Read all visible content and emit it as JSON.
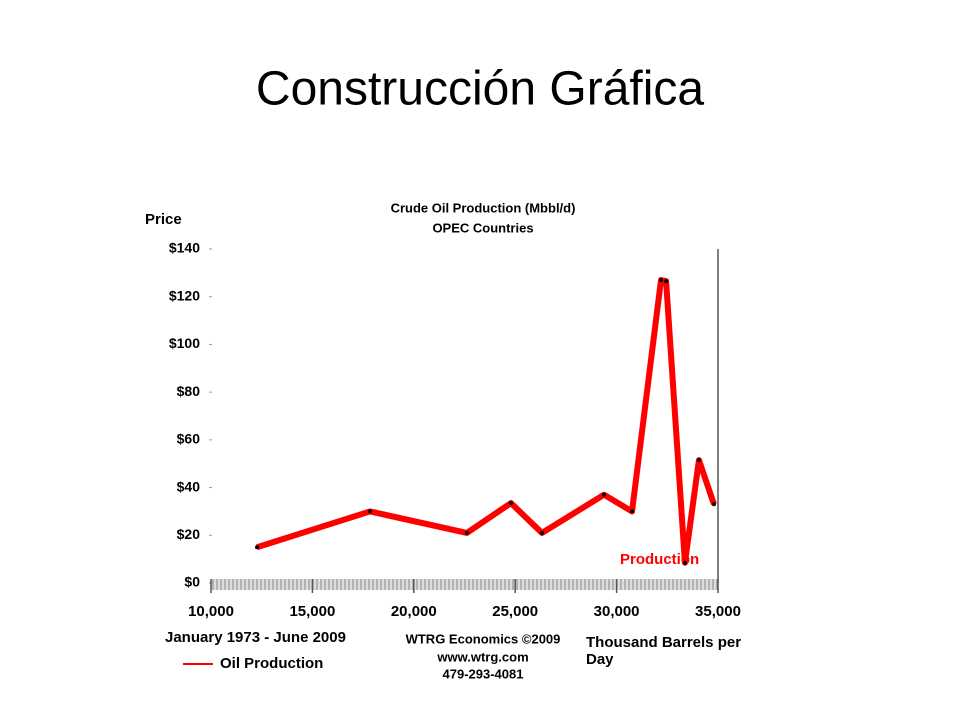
{
  "slide_title": "Construcción Gráfica",
  "chart_data": {
    "type": "line",
    "title": "Crude Oil Production (Mbbl/d)",
    "subtitle": "OPEC Countries",
    "y_label": "Price",
    "x_label": "Thousand Barrels per Day",
    "period": "January 1973 - June 2009",
    "source": [
      "WTRG Economics  ©2009",
      "www.wtrg.com",
      "479-293-4081"
    ],
    "annotation": "Production",
    "series": [
      {
        "name": "Oil Production",
        "color": "#ff0000",
        "x": [
          12270,
          17840,
          22620,
          24790,
          26320,
          29380,
          30760,
          32190,
          32440,
          33370,
          34060,
          34800
        ],
        "values": [
          15,
          30,
          21,
          33.5,
          21,
          37,
          30,
          127,
          126.5,
          8.5,
          51.5,
          33
        ]
      }
    ],
    "xlim": [
      10000,
      35000
    ],
    "xticks": [
      {
        "value": 10000,
        "label": "10,000"
      },
      {
        "value": 15000,
        "label": "15,000"
      },
      {
        "value": 20000,
        "label": "20,000"
      },
      {
        "value": 25000,
        "label": "25,000"
      },
      {
        "value": 30000,
        "label": "30,000"
      },
      {
        "value": 35000,
        "label": "35,000"
      }
    ],
    "ylim": [
      0,
      140
    ],
    "yticks": [
      {
        "value": 0,
        "label": "$0"
      },
      {
        "value": 20,
        "label": "$20"
      },
      {
        "value": 40,
        "label": "$40"
      },
      {
        "value": 60,
        "label": "$60"
      },
      {
        "value": 80,
        "label": "$80"
      },
      {
        "value": 100,
        "label": "$100"
      },
      {
        "value": 120,
        "label": "$120"
      },
      {
        "value": 140,
        "label": "$140"
      }
    ]
  }
}
